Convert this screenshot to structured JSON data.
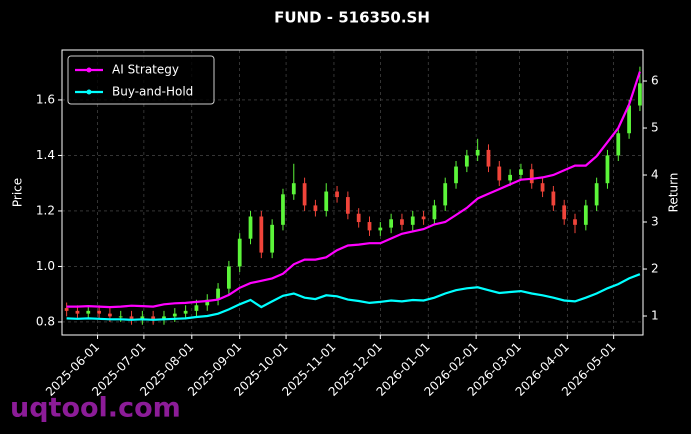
{
  "chart_data": {
    "type": "candlestick",
    "title": "FUND - 516350.SH",
    "x": [
      "2025-05-12",
      "2025-05-19",
      "2025-05-26",
      "2025-06-02",
      "2025-06-09",
      "2025-06-16",
      "2025-06-23",
      "2025-06-30",
      "2025-07-07",
      "2025-07-14",
      "2025-07-21",
      "2025-07-28",
      "2025-08-04",
      "2025-08-11",
      "2025-08-18",
      "2025-08-25",
      "2025-09-01",
      "2025-09-08",
      "2025-09-15",
      "2025-09-22",
      "2025-09-29",
      "2025-10-06",
      "2025-10-13",
      "2025-10-20",
      "2025-10-27",
      "2025-11-03",
      "2025-11-10",
      "2025-11-17",
      "2025-11-24",
      "2025-12-01",
      "2025-12-08",
      "2025-12-15",
      "2025-12-22",
      "2025-12-29",
      "2026-01-05",
      "2026-01-12",
      "2026-01-19",
      "2026-01-26",
      "2026-02-02",
      "2026-02-09",
      "2026-02-16",
      "2026-02-23",
      "2026-03-02",
      "2026-03-09",
      "2026-03-16",
      "2026-03-23",
      "2026-03-30",
      "2026-04-06",
      "2026-04-13",
      "2026-04-20",
      "2026-04-27",
      "2026-05-04",
      "2026-05-11",
      "2026-05-18"
    ],
    "open": [
      0.85,
      0.84,
      0.83,
      0.84,
      0.83,
      0.82,
      0.82,
      0.81,
      0.82,
      0.81,
      0.82,
      0.83,
      0.84,
      0.86,
      0.88,
      0.92,
      1.0,
      1.1,
      1.18,
      1.05,
      1.15,
      1.26,
      1.3,
      1.22,
      1.2,
      1.27,
      1.25,
      1.19,
      1.16,
      1.13,
      1.14,
      1.17,
      1.15,
      1.18,
      1.17,
      1.22,
      1.3,
      1.36,
      1.4,
      1.42,
      1.36,
      1.31,
      1.33,
      1.35,
      1.3,
      1.27,
      1.22,
      1.17,
      1.15,
      1.22,
      1.3,
      1.4,
      1.48,
      1.58
    ],
    "high": [
      0.87,
      0.86,
      0.86,
      0.86,
      0.85,
      0.84,
      0.84,
      0.84,
      0.84,
      0.84,
      0.85,
      0.86,
      0.88,
      0.9,
      0.94,
      1.02,
      1.12,
      1.2,
      1.2,
      1.17,
      1.28,
      1.37,
      1.32,
      1.24,
      1.3,
      1.29,
      1.27,
      1.21,
      1.18,
      1.16,
      1.19,
      1.19,
      1.2,
      1.2,
      1.24,
      1.32,
      1.38,
      1.42,
      1.46,
      1.44,
      1.38,
      1.35,
      1.37,
      1.37,
      1.32,
      1.29,
      1.24,
      1.19,
      1.24,
      1.32,
      1.42,
      1.5,
      1.6,
      1.72
    ],
    "low": [
      0.82,
      0.81,
      0.81,
      0.81,
      0.8,
      0.8,
      0.79,
      0.79,
      0.79,
      0.79,
      0.8,
      0.81,
      0.82,
      0.84,
      0.86,
      0.9,
      0.98,
      1.08,
      1.03,
      1.03,
      1.13,
      1.24,
      1.2,
      1.18,
      1.18,
      1.23,
      1.17,
      1.14,
      1.11,
      1.11,
      1.12,
      1.13,
      1.13,
      1.15,
      1.15,
      1.2,
      1.28,
      1.34,
      1.38,
      1.34,
      1.29,
      1.29,
      1.31,
      1.28,
      1.25,
      1.2,
      1.15,
      1.12,
      1.13,
      1.2,
      1.28,
      1.38,
      1.46,
      1.56
    ],
    "close": [
      0.84,
      0.83,
      0.84,
      0.83,
      0.82,
      0.82,
      0.81,
      0.82,
      0.81,
      0.82,
      0.83,
      0.84,
      0.86,
      0.88,
      0.92,
      1.0,
      1.1,
      1.18,
      1.05,
      1.15,
      1.26,
      1.3,
      1.22,
      1.2,
      1.27,
      1.25,
      1.19,
      1.16,
      1.13,
      1.14,
      1.17,
      1.15,
      1.18,
      1.17,
      1.22,
      1.3,
      1.36,
      1.4,
      1.42,
      1.36,
      1.31,
      1.33,
      1.35,
      1.3,
      1.27,
      1.22,
      1.17,
      1.15,
      1.22,
      1.3,
      1.4,
      1.48,
      1.58,
      1.66
    ],
    "up_color": "#5cf53a",
    "down_color": "#f0443a",
    "series": [
      {
        "name": "AI Strategy",
        "color": "#ff00ff",
        "axis": "y2",
        "values": [
          1.2,
          1.2,
          1.21,
          1.2,
          1.19,
          1.2,
          1.22,
          1.21,
          1.2,
          1.25,
          1.27,
          1.28,
          1.3,
          1.32,
          1.35,
          1.45,
          1.6,
          1.7,
          1.75,
          1.8,
          1.9,
          2.1,
          2.2,
          2.2,
          2.25,
          2.4,
          2.5,
          2.52,
          2.55,
          2.55,
          2.65,
          2.75,
          2.8,
          2.85,
          2.95,
          3.0,
          3.15,
          3.3,
          3.5,
          3.6,
          3.7,
          3.8,
          3.9,
          3.92,
          3.95,
          4.0,
          4.1,
          4.2,
          4.2,
          4.4,
          4.7,
          5.0,
          5.5,
          6.2
        ]
      },
      {
        "name": "Buy-and-Hold",
        "color": "#00ffff",
        "axis": "y2",
        "values": [
          0.95,
          0.94,
          0.95,
          0.94,
          0.93,
          0.93,
          0.92,
          0.93,
          0.92,
          0.93,
          0.94,
          0.95,
          0.98,
          1.0,
          1.05,
          1.14,
          1.25,
          1.34,
          1.19,
          1.31,
          1.43,
          1.48,
          1.39,
          1.36,
          1.44,
          1.42,
          1.35,
          1.32,
          1.28,
          1.3,
          1.33,
          1.31,
          1.34,
          1.33,
          1.39,
          1.48,
          1.55,
          1.59,
          1.61,
          1.55,
          1.49,
          1.51,
          1.53,
          1.48,
          1.44,
          1.39,
          1.33,
          1.31,
          1.39,
          1.48,
          1.59,
          1.68,
          1.8,
          1.89
        ]
      }
    ],
    "ylabel": "Price",
    "y2label": "Return",
    "xlim": [
      "2025-05-09",
      "2026-05-20"
    ],
    "xticks": [
      "2025-06-01",
      "2025-07-01",
      "2025-08-01",
      "2025-09-01",
      "2025-10-01",
      "2025-11-01",
      "2025-12-01",
      "2026-01-01",
      "2026-02-01",
      "2026-03-01",
      "2026-04-01",
      "2026-05-01"
    ],
    "ylim": [
      0.753,
      1.78
    ],
    "yticks": [
      0.8,
      {
        "value": 1,
        "label": "1.0"
      },
      1.2,
      1.4,
      1.6
    ],
    "y2lim": [
      0.596,
      6.66
    ],
    "y2ticks": [
      1,
      2,
      3,
      4,
      5,
      6
    ],
    "grid": true,
    "legend": "upper left",
    "watermark": "uqtool.com"
  }
}
